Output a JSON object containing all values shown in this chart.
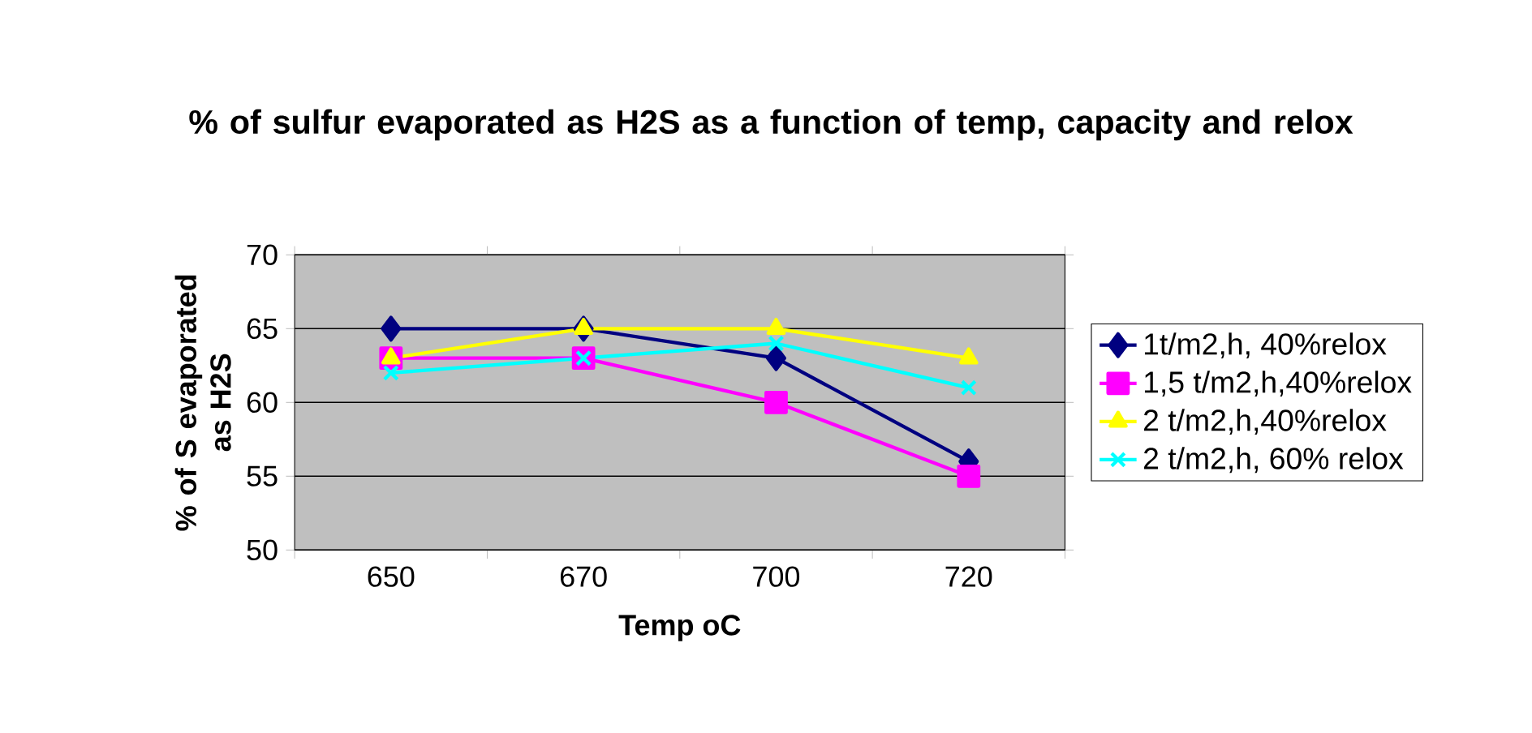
{
  "chart_data": {
    "type": "line",
    "title": "% of sulfur evaporated as H2S as a function of temp, capacity and relox",
    "xlabel": "Temp oC",
    "ylabel": "% of S evaporated as H2S",
    "categories": [
      "650",
      "670",
      "700",
      "720"
    ],
    "series": [
      {
        "name": "1t/m2,h, 40%relox",
        "color": "#000080",
        "marker": "diamond",
        "values": [
          65,
          65,
          63,
          56
        ]
      },
      {
        "name": "1,5 t/m2,h,40%relox",
        "color": "#ff00ff",
        "marker": "square",
        "values": [
          63,
          63,
          60,
          55
        ]
      },
      {
        "name": "2 t/m2,h,40%relox",
        "color": "#ffff00",
        "marker": "triangle",
        "values": [
          63,
          65,
          65,
          63
        ]
      },
      {
        "name": "2 t/m2,h, 60% relox",
        "color": "#00ffff",
        "marker": "cross",
        "values": [
          62,
          63,
          64,
          61
        ]
      }
    ],
    "ylim": [
      50,
      70
    ],
    "yticks": [
      50,
      55,
      60,
      65,
      70
    ],
    "grid": "y",
    "legend": "right",
    "line_style": "solid"
  }
}
